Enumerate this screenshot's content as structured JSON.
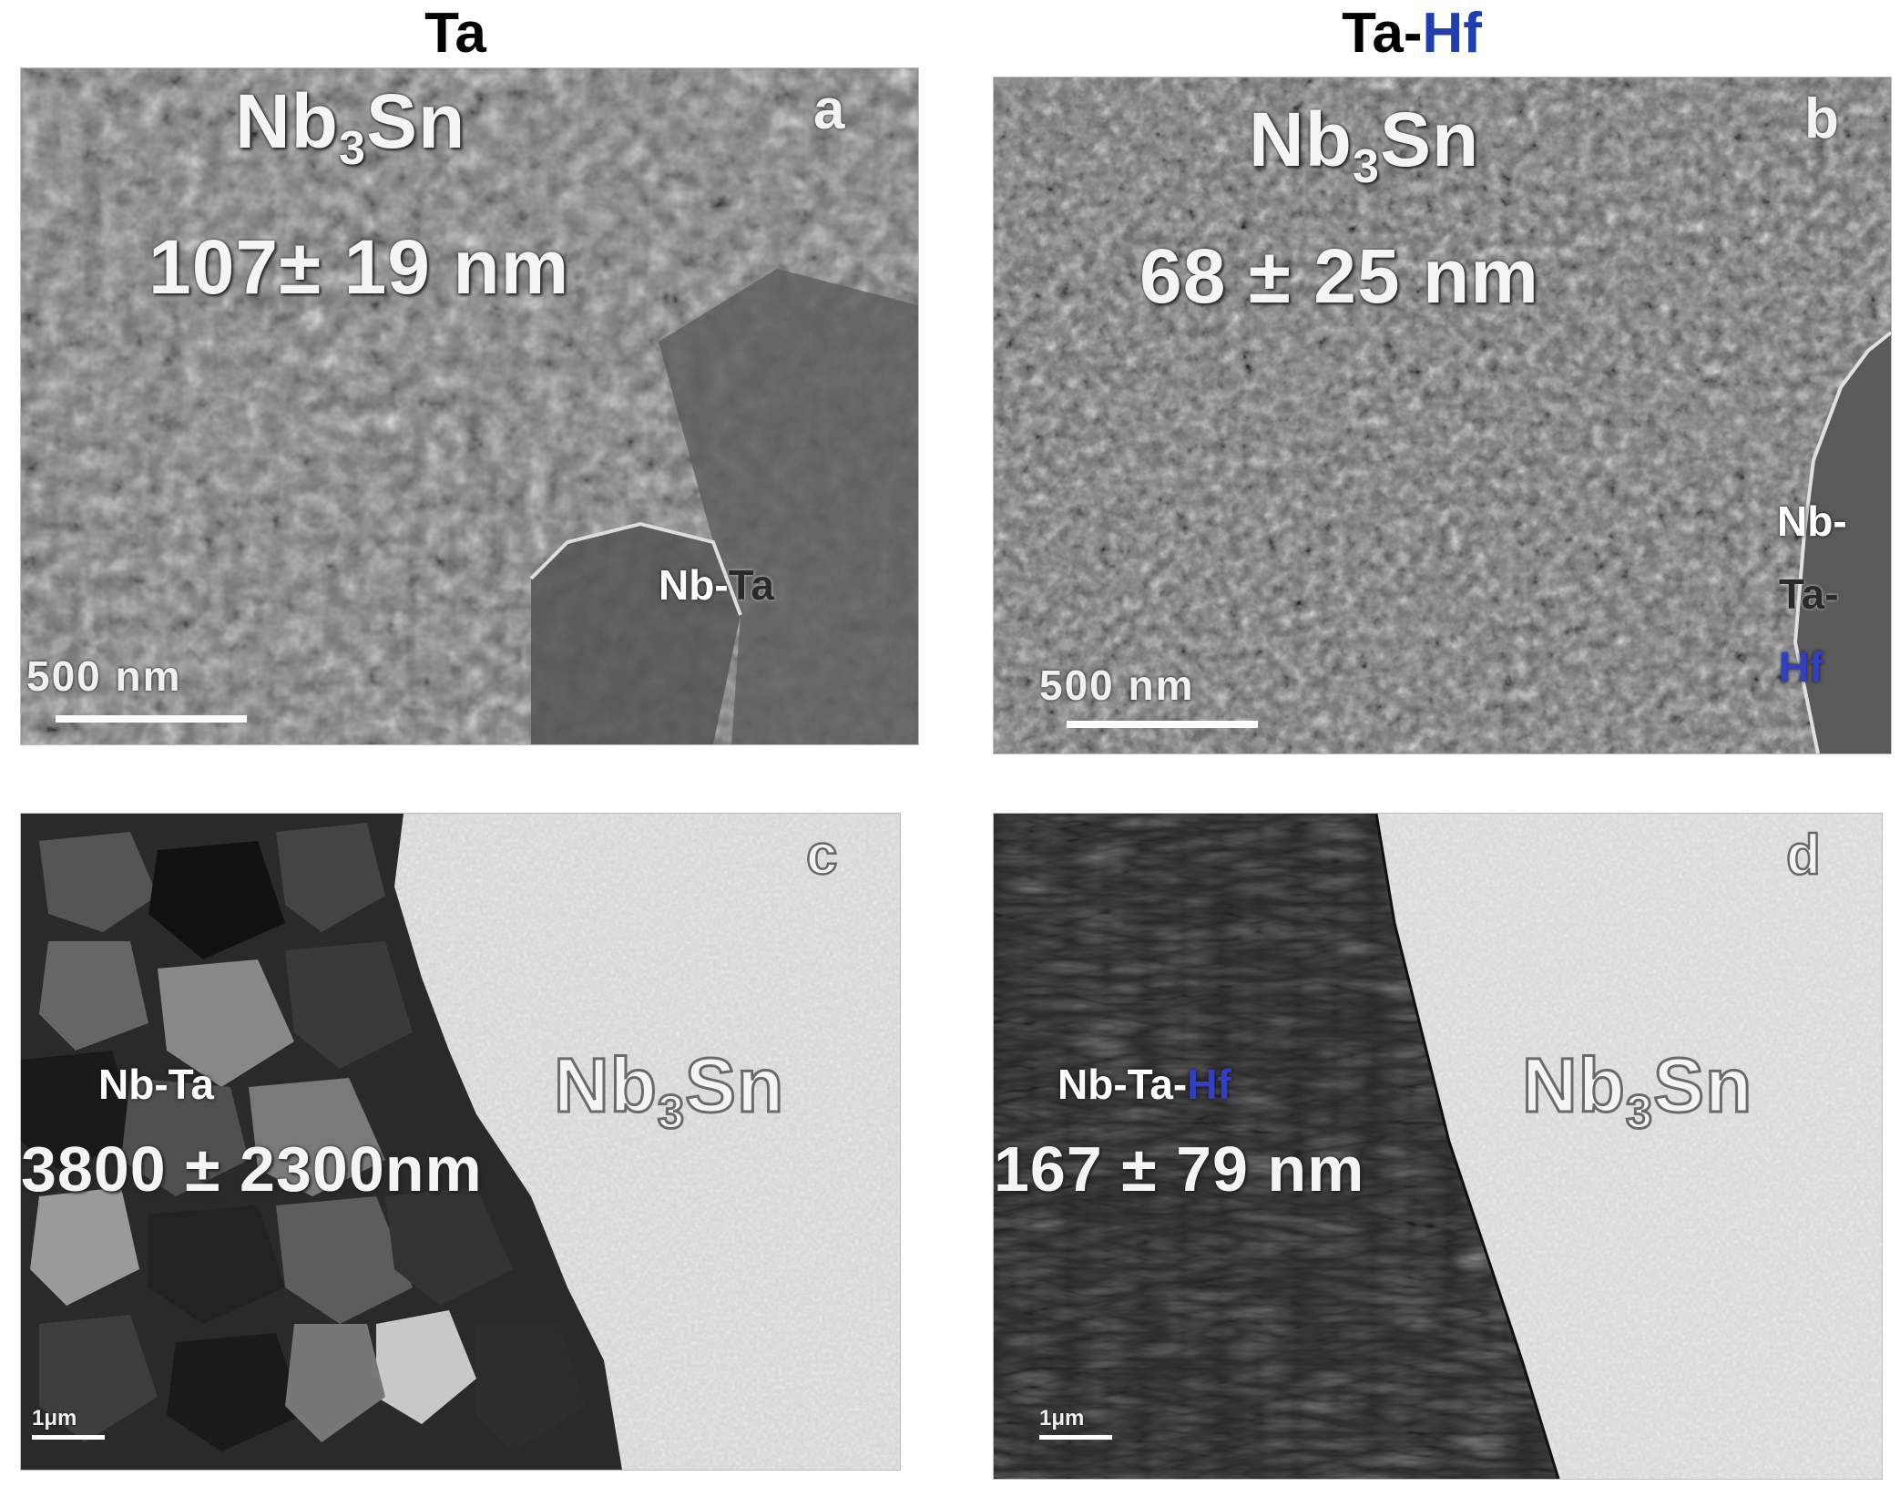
{
  "columns": [
    {
      "title": "Ta",
      "title_suffix": ""
    },
    {
      "title": "Ta-",
      "title_suffix": "Hf"
    }
  ],
  "accent_color": "#1f3fb0",
  "panels": {
    "a": {
      "letter": "a",
      "phase": "Nb",
      "phase_sub": "3",
      "phase_end": "Sn",
      "grain_size": "107± 19 nm",
      "region_label_1": "Nb-",
      "region_label_2": "Ta",
      "scale_bar": "500 nm"
    },
    "b": {
      "letter": "b",
      "phase": "Nb",
      "phase_sub": "3",
      "phase_end": "Sn",
      "grain_size": "68 ± 25 nm",
      "region_line_1": "Nb-",
      "region_line_2": "Ta-",
      "region_line_3": "Hf",
      "scale_bar": "500 nm"
    },
    "c": {
      "letter": "c",
      "region_label": "Nb-Ta",
      "grain_size": "3800 ± 2300nm",
      "phase": "Nb",
      "phase_sub": "3",
      "phase_end": "Sn",
      "scale_bar": "1μm"
    },
    "d": {
      "letter": "d",
      "region_label_1": "Nb-Ta-",
      "region_label_2": "Hf",
      "grain_size": "167 ± 79 nm",
      "phase": "Nb",
      "phase_sub": "3",
      "phase_end": "Sn",
      "scale_bar": "1μm"
    }
  }
}
